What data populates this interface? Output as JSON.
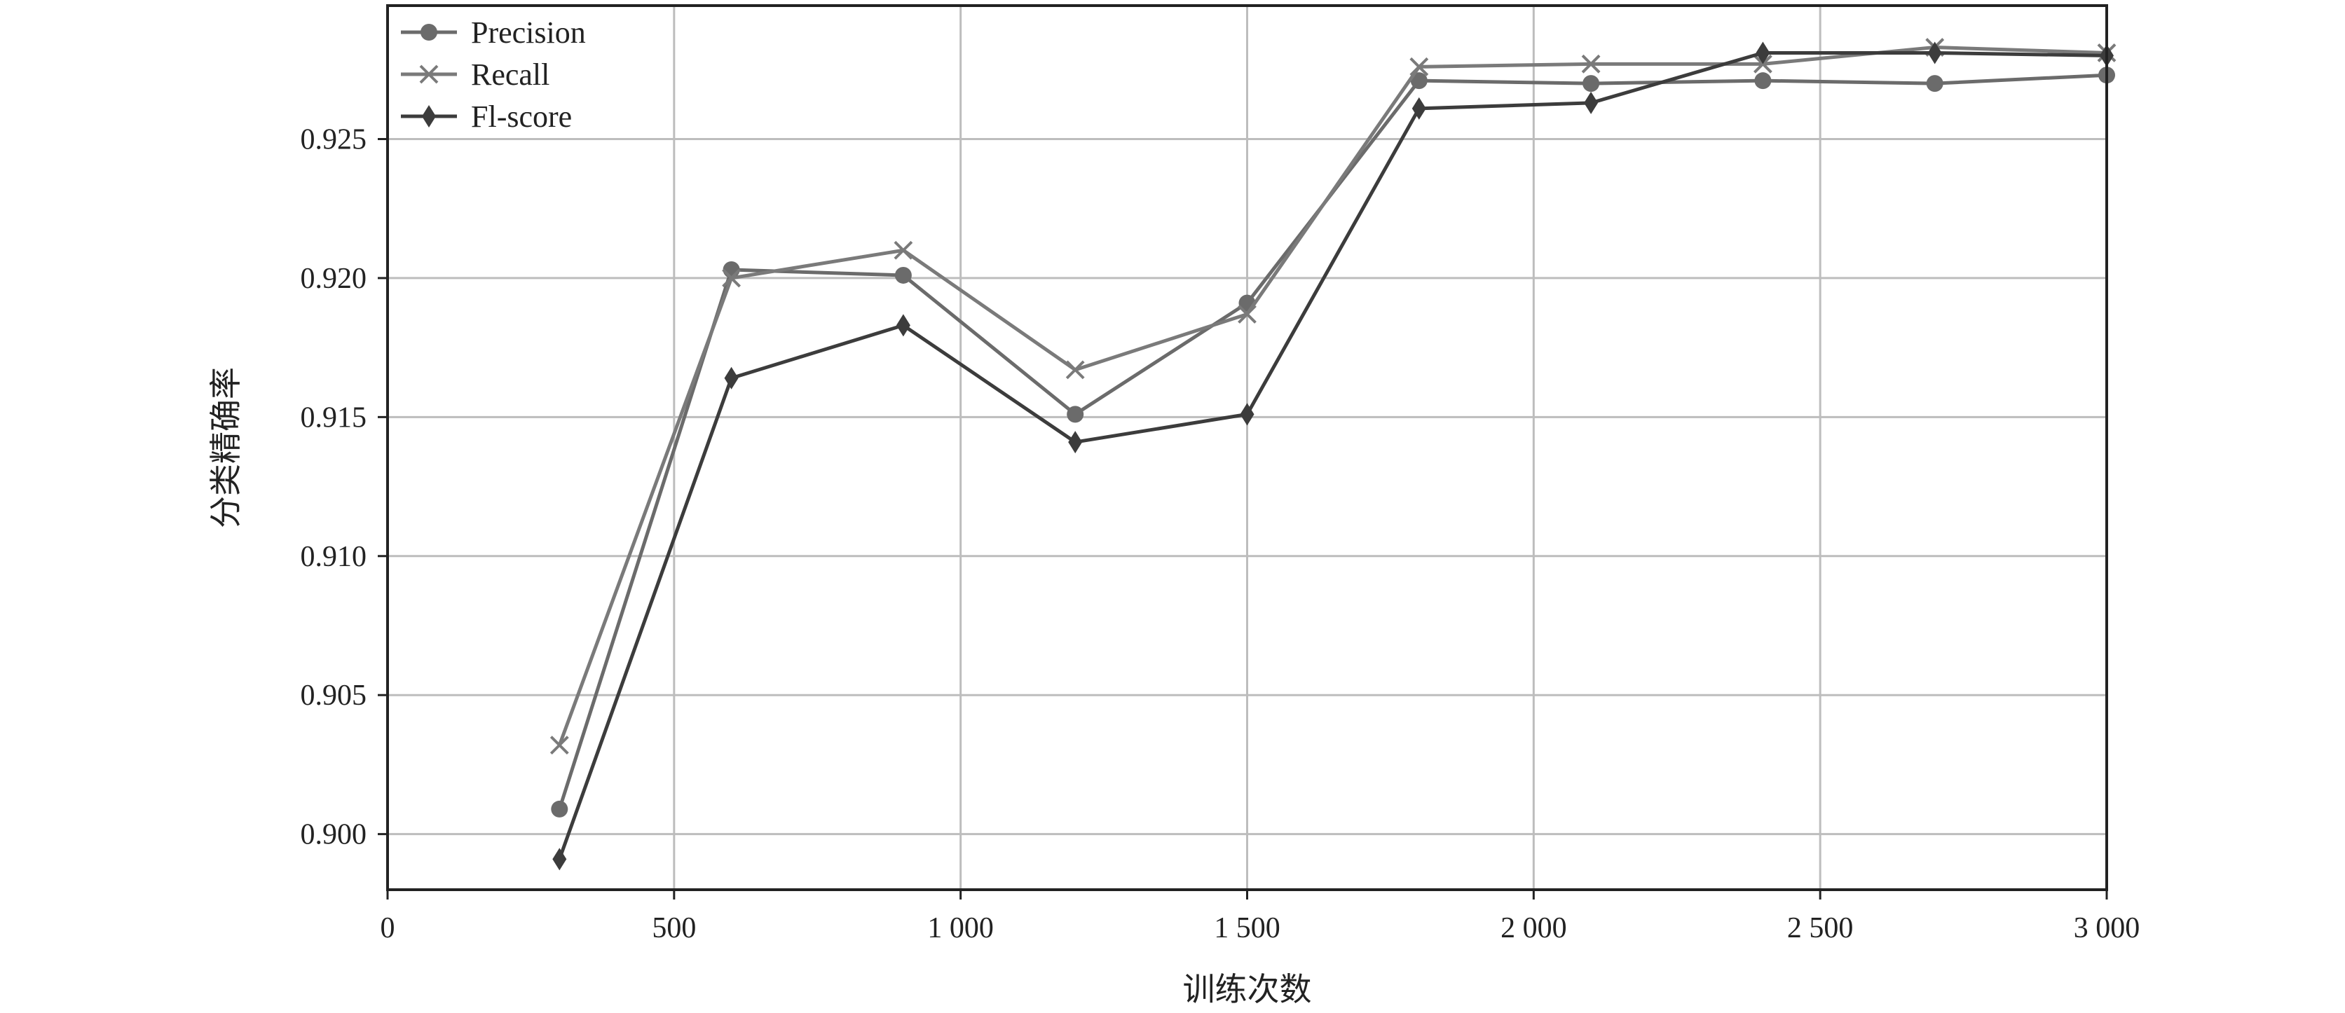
{
  "chart_data": {
    "type": "line",
    "title": "",
    "xlabel": "训练次数",
    "ylabel": "分类精确率",
    "xlim": [
      0,
      3000
    ],
    "ylim": [
      0.898,
      0.9298
    ],
    "x_ticks": [
      0,
      500,
      1000,
      1500,
      2000,
      2500,
      3000
    ],
    "x_tick_labels": [
      "0",
      "500",
      "1 000",
      "1 500",
      "2 000",
      "2 500",
      "3 000"
    ],
    "y_ticks": [
      0.9,
      0.905,
      0.91,
      0.915,
      0.92,
      0.925
    ],
    "y_tick_labels": [
      "0.900",
      "0.905",
      "0.910",
      "0.915",
      "0.920",
      "0.925"
    ],
    "grid": true,
    "legend_position": "top-left",
    "x": [
      300,
      600,
      900,
      1200,
      1500,
      1800,
      2100,
      2400,
      2700,
      3000
    ],
    "series": [
      {
        "name": "Precision",
        "marker": "circle",
        "color": "#6b6b6b",
        "values": [
          0.9009,
          0.9203,
          0.9201,
          0.9151,
          0.9191,
          0.9271,
          0.927,
          0.9271,
          0.927,
          0.9273
        ]
      },
      {
        "name": "Recall",
        "marker": "x",
        "color": "#7a7a7a",
        "values": [
          0.9032,
          0.92,
          0.921,
          0.9167,
          0.9187,
          0.9276,
          0.9277,
          0.9277,
          0.9283,
          0.9281
        ]
      },
      {
        "name": "Fl-score",
        "marker": "diamond",
        "color": "#3c3c3c",
        "values": [
          0.8991,
          0.9164,
          0.9183,
          0.9141,
          0.9151,
          0.9261,
          0.9263,
          0.9281,
          0.9281,
          0.928
        ]
      }
    ]
  }
}
